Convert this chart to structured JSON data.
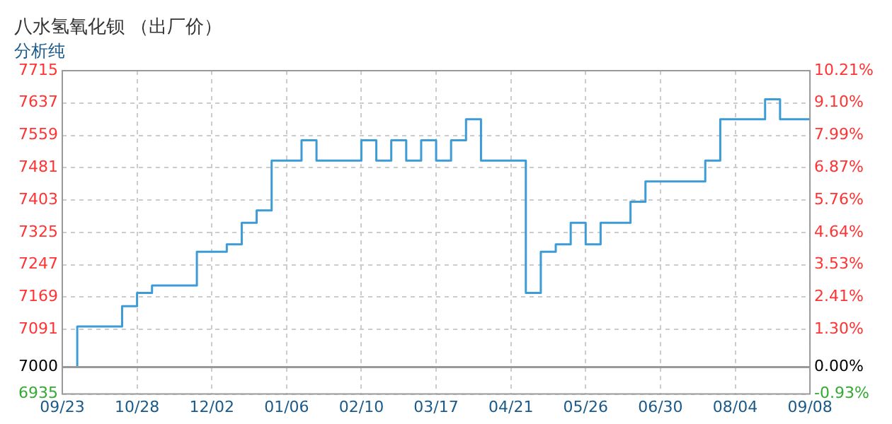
{
  "chart_data": {
    "type": "step",
    "title": "八水氢氧化钡 （出厂价）",
    "subtitle": "分析纯",
    "categories": [
      "09/23",
      null,
      null,
      null,
      null,
      "10/28",
      null,
      null,
      null,
      null,
      "12/02",
      null,
      null,
      null,
      null,
      "01/06",
      null,
      null,
      null,
      null,
      "02/10",
      null,
      null,
      null,
      null,
      "03/17",
      null,
      null,
      null,
      null,
      "04/21",
      null,
      null,
      null,
      null,
      "05/26",
      null,
      null,
      null,
      null,
      "06/30",
      null,
      null,
      null,
      null,
      "08/04",
      null,
      null,
      null,
      null,
      "09/08"
    ],
    "series": [
      {
        "color": "#3d9bd6",
        "values": [
          7000,
          7098,
          7098,
          7098,
          7147,
          7179,
          7197,
          7197,
          7197,
          7278,
          7278,
          7296,
          7348,
          7378,
          7498,
          7498,
          7547,
          7498,
          7498,
          7498,
          7547,
          7498,
          7547,
          7498,
          7547,
          7498,
          7547,
          7598,
          7498,
          7498,
          7498,
          7179,
          7278,
          7296,
          7348,
          7296,
          7348,
          7348,
          7399,
          7448,
          7448,
          7448,
          7448,
          7498,
          7598,
          7598,
          7598,
          7646,
          7598,
          7598,
          7598
        ]
      }
    ],
    "ylim": [
      6935,
      7715
    ],
    "yticks": [
      6935,
      7000,
      7091,
      7169,
      7247,
      7325,
      7403,
      7481,
      7559,
      7637,
      7715
    ],
    "y2lim": [
      -0.93,
      10.21
    ],
    "y2ticks": [
      {
        "value": -0.93,
        "label": "-0.93%"
      },
      {
        "value": 0,
        "label": "0.00%"
      },
      {
        "value": 1.3,
        "label": "1.30%"
      },
      {
        "value": 2.41,
        "label": "2.41%"
      },
      {
        "value": 3.53,
        "label": "3.53%"
      },
      {
        "value": 4.64,
        "label": "4.64%"
      },
      {
        "value": 5.76,
        "label": "5.76%"
      },
      {
        "value": 6.87,
        "label": "6.87%"
      },
      {
        "value": 7.99,
        "label": "7.99%"
      },
      {
        "value": 9.1,
        "label": "9.10%"
      },
      {
        "value": 10.21,
        "label": "10.21%"
      }
    ],
    "ref_lines": [
      {
        "axis": "y",
        "value": 7000,
        "color": "#999999"
      }
    ],
    "grid": true,
    "legend": false,
    "marker": "none",
    "line_style": "solid"
  }
}
